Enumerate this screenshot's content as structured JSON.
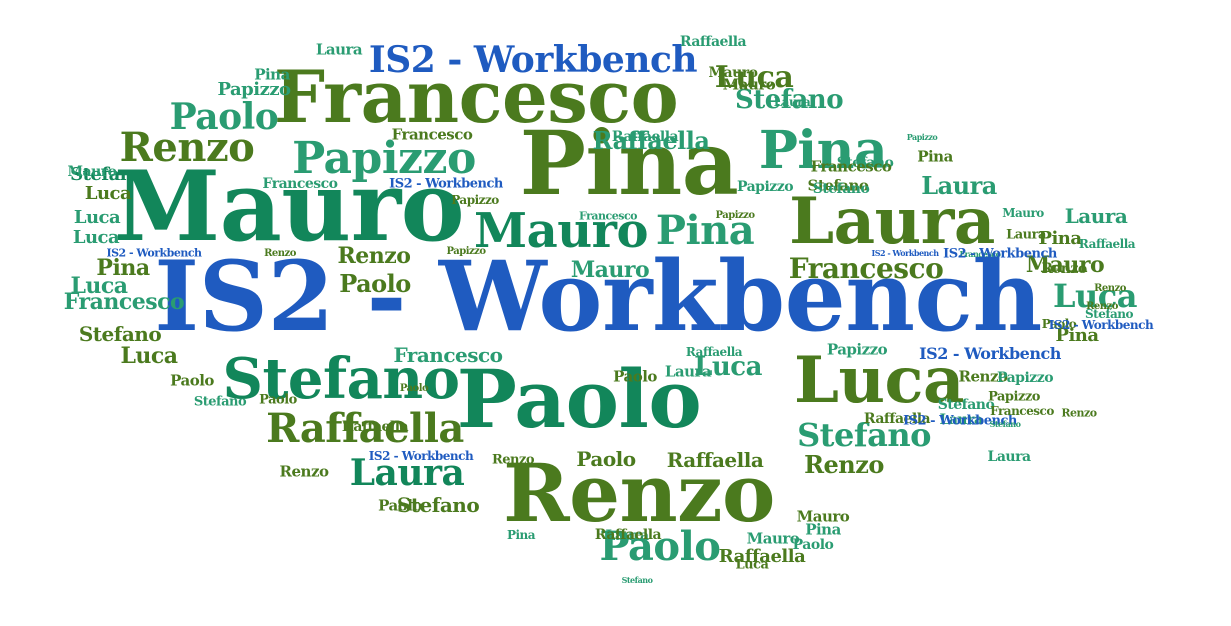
{
  "colors": {
    "blue": "#1f5bc0",
    "olive": "#4b7a1e",
    "teal": "#12865a",
    "mint": "#2a9c72"
  },
  "words": [
    {
      "text": "IS2 - Workbench",
      "color": "blue"
    },
    {
      "text": "Mauro",
      "color": "teal"
    },
    {
      "text": "Pina",
      "color": "olive"
    },
    {
      "text": "Paolo",
      "color": "teal"
    },
    {
      "text": "Renzo",
      "color": "olive"
    },
    {
      "text": "Francesco",
      "color": "olive"
    },
    {
      "text": "Laura",
      "color": "olive"
    },
    {
      "text": "Luca",
      "color": "olive"
    },
    {
      "text": "Stefano",
      "color": "teal"
    },
    {
      "text": "Papizzo",
      "color": "mint"
    },
    {
      "text": "Pina",
      "color": "mint"
    },
    {
      "text": "Raffaella",
      "color": "olive"
    },
    {
      "text": "Mauro",
      "color": "teal"
    },
    {
      "text": "Laura",
      "color": "teal"
    },
    {
      "text": "Paolo",
      "color": "mint"
    },
    {
      "text": "Renzo",
      "color": "olive"
    },
    {
      "text": "IS2 - Workbench",
      "color": "blue"
    },
    {
      "text": "Stefano",
      "color": "mint"
    },
    {
      "text": "Paolo",
      "color": "mint"
    },
    {
      "text": "Francesco",
      "color": "olive"
    },
    {
      "text": "Luca",
      "color": "mint"
    },
    {
      "text": "Pina",
      "color": "mint"
    },
    {
      "text": "Luca",
      "color": "olive"
    },
    {
      "text": "Luca",
      "color": "mint"
    },
    {
      "text": "Stefano",
      "color": "mint"
    },
    {
      "text": "Raffaella",
      "color": "mint"
    },
    {
      "text": "Paolo",
      "color": "olive"
    },
    {
      "text": "Renzo",
      "color": "olive"
    },
    {
      "text": "Mauro",
      "color": "mint"
    },
    {
      "text": "Laura",
      "color": "mint"
    },
    {
      "text": "Stefano",
      "color": "olive"
    },
    {
      "text": "Laura",
      "color": "mint"
    },
    {
      "text": "Renzo",
      "color": "olive"
    },
    {
      "text": "Francesco",
      "color": "mint"
    },
    {
      "text": "Mauro",
      "color": "olive"
    },
    {
      "text": "Francesco",
      "color": "mint"
    },
    {
      "text": "Papizzo",
      "color": "mint"
    },
    {
      "text": "Paolo",
      "color": "olive"
    },
    {
      "text": "Raffaella",
      "color": "olive"
    },
    {
      "text": "Stefano",
      "color": "olive"
    },
    {
      "text": "Francesco",
      "color": "olive"
    },
    {
      "text": "Laura",
      "color": "mint"
    },
    {
      "text": "Pina",
      "color": "mint"
    },
    {
      "text": "Pina",
      "color": "olive"
    },
    {
      "text": "Mauro",
      "color": "olive"
    },
    {
      "text": "Luca",
      "color": "olive"
    },
    {
      "text": "IS2 - Workbench",
      "color": "blue"
    },
    {
      "text": "Pina",
      "color": "olive"
    },
    {
      "text": "Papizzo",
      "color": "olive"
    },
    {
      "text": "Luca",
      "color": "olive"
    },
    {
      "text": "Stefano",
      "color": "teal"
    },
    {
      "text": "Mauro",
      "color": "mint"
    },
    {
      "text": "Luca",
      "color": "mint"
    },
    {
      "text": "Luca",
      "color": "mint"
    },
    {
      "text": "Luca",
      "color": "mint"
    },
    {
      "text": "Papizzo",
      "color": "mint"
    },
    {
      "text": "Stefano",
      "color": "olive"
    },
    {
      "text": "Francesco",
      "color": "mint"
    },
    {
      "text": "IS2 - Workbench",
      "color": "blue"
    },
    {
      "text": "Raffaella",
      "color": "mint"
    },
    {
      "text": "Papizzo",
      "color": "olive"
    },
    {
      "text": "Laura",
      "color": "olive"
    },
    {
      "text": "Pina",
      "color": "olive"
    },
    {
      "text": "Mauro",
      "color": "olive"
    },
    {
      "text": "Pina",
      "color": "olive"
    },
    {
      "text": "Paolo",
      "color": "olive"
    },
    {
      "text": "Stefano",
      "color": "mint"
    },
    {
      "text": "Renzo",
      "color": "olive"
    },
    {
      "text": "Mauro",
      "color": "mint"
    },
    {
      "text": "Laura",
      "color": "mint"
    },
    {
      "text": "IS2 - Workbench",
      "color": "blue"
    },
    {
      "text": "Stefano",
      "color": "mint"
    },
    {
      "text": "Papizzo",
      "color": "mint"
    },
    {
      "text": "Francesco",
      "color": "olive"
    },
    {
      "text": "Papizzo",
      "color": "mint"
    },
    {
      "text": "IS2 - Workbench",
      "color": "blue"
    },
    {
      "text": "Francesco",
      "color": "mint"
    },
    {
      "text": "Renzo",
      "color": "olive"
    },
    {
      "text": "Renzo",
      "color": "olive"
    },
    {
      "text": "Paolo",
      "color": "olive"
    },
    {
      "text": "Raffaella",
      "color": "olive"
    },
    {
      "text": "Raffaella",
      "color": "mint"
    },
    {
      "text": "Raffaella",
      "color": "mint"
    },
    {
      "text": "Paolo",
      "color": "olive"
    },
    {
      "text": "Papizzo",
      "color": "mint"
    },
    {
      "text": "Papizzo",
      "color": "olive"
    },
    {
      "text": "Francesco",
      "color": "mint"
    },
    {
      "text": "IS2 - Workbench",
      "color": "blue"
    },
    {
      "text": "Stefano",
      "color": "mint"
    },
    {
      "text": "Laura",
      "color": "mint"
    },
    {
      "text": "Paolo",
      "color": "olive"
    },
    {
      "text": "Raffaella",
      "color": "olive"
    },
    {
      "text": "Stefano",
      "color": "mint"
    },
    {
      "text": "Raffaella",
      "color": "mint"
    },
    {
      "text": "IS2 - Workbench",
      "color": "blue"
    },
    {
      "text": "Paolo",
      "color": "olive"
    },
    {
      "text": "Renzo",
      "color": "olive"
    },
    {
      "text": "Renzo",
      "color": "olive"
    },
    {
      "text": "Stefano",
      "color": "mint"
    },
    {
      "text": "Laura",
      "color": "mint"
    },
    {
      "text": "Pina",
      "color": "mint"
    },
    {
      "text": "Raffaella",
      "color": "olive"
    },
    {
      "text": "Mauro",
      "color": "olive"
    },
    {
      "text": "Renzo",
      "color": "olive"
    },
    {
      "text": "Luca",
      "color": "olive"
    },
    {
      "text": "Pina",
      "color": "mint"
    },
    {
      "text": "Paolo",
      "color": "olive"
    },
    {
      "text": "Paolo",
      "color": "mint"
    },
    {
      "text": "Mauro",
      "color": "mint"
    },
    {
      "text": "Laura",
      "color": "mint"
    },
    {
      "text": "Renzo",
      "color": "olive"
    },
    {
      "text": "IS2 - Workbench",
      "color": "blue"
    },
    {
      "text": "Raffaella",
      "color": "olive"
    },
    {
      "text": "Stefano",
      "color": "mint"
    },
    {
      "text": "Renzo",
      "color": "olive"
    },
    {
      "text": "IS2 - Workbench",
      "color": "blue"
    },
    {
      "text": "Laura",
      "color": "mint"
    },
    {
      "text": "Francesco",
      "color": "olive"
    },
    {
      "text": "Papizzo",
      "color": "olive"
    },
    {
      "text": "Stefano",
      "color": "mint"
    }
  ]
}
